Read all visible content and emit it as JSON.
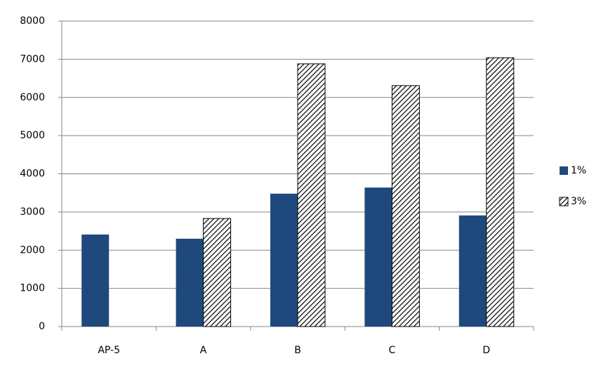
{
  "chart_data": {
    "type": "bar",
    "categories": [
      "AP-5",
      "A",
      "B",
      "C",
      "D"
    ],
    "series": [
      {
        "name": "1%",
        "color": "#1f497d",
        "values": [
          2410,
          2300,
          3480,
          3640,
          2910
        ]
      },
      {
        "name": "3%",
        "color": "#000000",
        "hatch": true,
        "values": [
          null,
          2830,
          6880,
          6310,
          7040
        ]
      }
    ],
    "ylim": [
      0,
      8000
    ],
    "yticks": [
      0,
      1000,
      2000,
      3000,
      4000,
      5000,
      6000,
      7000,
      8000
    ],
    "grid": true,
    "legend": "right"
  }
}
